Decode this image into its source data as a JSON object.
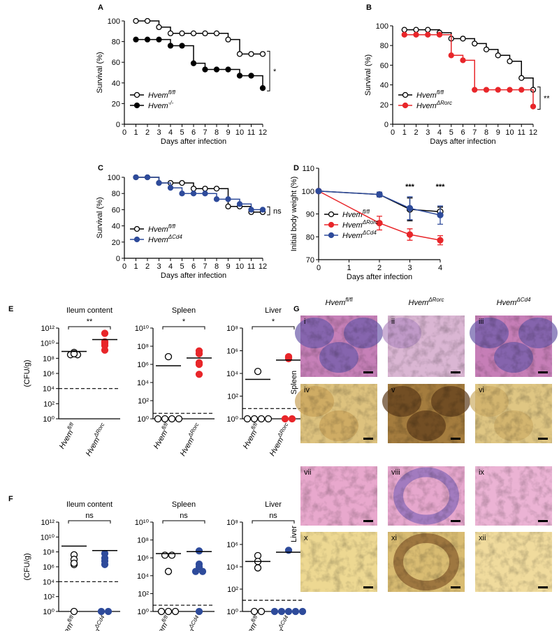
{
  "panel_labels": [
    "A",
    "B",
    "C",
    "D",
    "E",
    "F",
    "G"
  ],
  "chart_data": [
    {
      "type": "step",
      "xlabel": "Days after infection",
      "ylabel": "Survival (%)",
      "xlim": [
        0,
        12
      ],
      "xticks": [
        0,
        1,
        2,
        3,
        4,
        5,
        6,
        7,
        8,
        9,
        10,
        11,
        12
      ],
      "ylim": [
        0,
        100
      ],
      "yticks": [
        0,
        20,
        40,
        60,
        80,
        100
      ],
      "legend": "lower left",
      "annotation": "*",
      "x": [
        1,
        2,
        3,
        4,
        5,
        6,
        7,
        8,
        9,
        10,
        11,
        12
      ],
      "series": [
        {
          "name": "Hvem",
          "sup": "fl/fl",
          "color": "#000000",
          "marker": "open",
          "values": [
            100,
            100,
            94,
            88,
            88,
            88,
            88,
            88,
            82,
            68,
            68,
            68
          ]
        },
        {
          "name": "Hvem",
          "sup": "-/-",
          "color": "#000000",
          "marker": "filled",
          "values": [
            82,
            82,
            82,
            76,
            76,
            59,
            53,
            53,
            53,
            47,
            47,
            35
          ]
        }
      ]
    },
    {
      "type": "step",
      "xlabel": "Days after infection",
      "ylabel": "Survival (%)",
      "xlim": [
        0,
        12
      ],
      "xticks": [
        0,
        1,
        2,
        3,
        4,
        5,
        6,
        7,
        8,
        9,
        10,
        11,
        12
      ],
      "ylim": [
        0,
        100
      ],
      "yticks": [
        0,
        20,
        40,
        60,
        80,
        100
      ],
      "legend": "lower left",
      "annotation": "**",
      "x": [
        1,
        2,
        3,
        4,
        5,
        6,
        7,
        8,
        9,
        10,
        11,
        12
      ],
      "series": [
        {
          "name": "Hvem",
          "sup": "fl/fl",
          "color": "#000000",
          "marker": "open",
          "values": [
            96,
            96,
            96,
            93,
            87,
            87,
            82,
            76,
            70,
            64,
            47,
            35
          ]
        },
        {
          "name": "Hvem",
          "sup": "ΔRorc",
          "color": "#e8262a",
          "marker": "filled",
          "values": [
            91,
            91,
            91,
            91,
            70,
            65,
            35,
            35,
            35,
            35,
            35,
            18
          ]
        }
      ]
    },
    {
      "type": "step",
      "xlabel": "Days after infection",
      "ylabel": "Survival (%)",
      "xlim": [
        0,
        12
      ],
      "xticks": [
        0,
        1,
        2,
        3,
        4,
        5,
        6,
        7,
        8,
        9,
        10,
        11,
        12
      ],
      "ylim": [
        0,
        100
      ],
      "yticks": [
        0,
        20,
        40,
        60,
        80,
        100
      ],
      "legend": "lower left",
      "annotation": "ns",
      "x": [
        1,
        2,
        3,
        4,
        5,
        6,
        7,
        8,
        9,
        10,
        11,
        12
      ],
      "series": [
        {
          "name": "Hvem",
          "sup": "fl/fl",
          "color": "#000000",
          "marker": "open",
          "values": [
            100,
            100,
            93,
            93,
            93,
            86,
            86,
            86,
            64,
            64,
            57,
            57
          ]
        },
        {
          "name": "Hvem",
          "sup": "ΔCd4",
          "color": "#2e4b9b",
          "marker": "filled",
          "values": [
            100,
            100,
            93,
            87,
            80,
            80,
            80,
            73,
            73,
            67,
            60,
            60
          ]
        }
      ]
    },
    {
      "type": "line",
      "xlabel": "Days after infection",
      "ylabel": "Initial body weight (%)",
      "xlim": [
        0,
        4
      ],
      "xticks": [
        0,
        1,
        2,
        3,
        4
      ],
      "ylim": [
        70,
        110
      ],
      "yticks": [
        70,
        80,
        90,
        100,
        110
      ],
      "legend": "lower left",
      "x": [
        0,
        2,
        3,
        4
      ],
      "annotations": [
        {
          "x": 3,
          "text": "***"
        },
        {
          "x": 4,
          "text": "***"
        }
      ],
      "series": [
        {
          "name": "Hvem",
          "sup": "fl/fl",
          "color": "#000000",
          "marker": "open",
          "values": [
            100,
            98.5,
            92,
            91
          ],
          "errors": [
            0,
            1,
            5,
            2
          ]
        },
        {
          "name": "Hvem",
          "sup": "ΔRorc",
          "color": "#e8262a",
          "marker": "filled",
          "values": [
            100,
            86,
            81,
            78.5
          ],
          "errors": [
            0,
            3,
            2.5,
            2
          ]
        },
        {
          "name": "Hvem",
          "sup": "ΔCd4",
          "color": "#2e4b9b",
          "marker": "filled",
          "values": [
            100,
            98.5,
            92.5,
            89.5
          ],
          "errors": [
            0,
            1,
            5,
            4
          ]
        }
      ]
    },
    {
      "type": "strip",
      "title": "Ileum content",
      "ylabel": "(CFU/g)",
      "yscale": "log",
      "ylim": [
        1,
        1000000000000.0
      ],
      "detection_limit": 10000.0,
      "annotation": "**",
      "yticks": [
        {
          "value": 1,
          "label": "10⁰"
        },
        {
          "value": 100,
          "label": "10²"
        },
        {
          "value": 10000.0,
          "label": "10⁴"
        },
        {
          "value": 1000000.0,
          "label": "10⁶"
        },
        {
          "value": 100000000.0,
          "label": "10⁸"
        },
        {
          "value": 10000000000.0,
          "label": "10¹⁰"
        },
        {
          "value": 1000000000000.0,
          "label": "10¹²"
        }
      ],
      "series": [
        {
          "name": "Hvem",
          "sup": "fl/fl",
          "color": "#000000",
          "marker": "open",
          "values": [
            600000000.0,
            300000000.0,
            300000000.0,
            400000000.0
          ],
          "mean": 800000000.0
        },
        {
          "name": "Hvem",
          "sup": "ΔRorc",
          "color": "#e8262a",
          "marker": "filled",
          "values": [
            200000000000.0,
            10000000000.0,
            15000000000.0,
            5000000000.0,
            1200000000.0
          ],
          "mean": 30000000000.0
        }
      ]
    },
    {
      "type": "strip",
      "title": "Spleen",
      "yscale": "log",
      "ylim": [
        1,
        10000000000.0
      ],
      "detection_limit": 4,
      "annotation": "*",
      "yticks": [
        {
          "value": 1,
          "label": "10⁰"
        },
        {
          "value": 100,
          "label": "10²"
        },
        {
          "value": 10000.0,
          "label": "10⁴"
        },
        {
          "value": 1000000.0,
          "label": "10⁶"
        },
        {
          "value": 100000000.0,
          "label": "10⁸"
        },
        {
          "value": 10000000000.0,
          "label": "10¹⁰"
        }
      ],
      "series": [
        {
          "name": "Hvem",
          "sup": "fl/fl",
          "color": "#000000",
          "marker": "open",
          "values": [
            7000000.0,
            1,
            1,
            1,
            1
          ],
          "mean": 700000.0
        },
        {
          "name": "Hvem",
          "sup": "ΔRorc",
          "color": "#e8262a",
          "marker": "filled",
          "values": [
            30000000.0,
            15000000.0,
            1500000.0,
            1000000.0,
            80000.0
          ],
          "mean": 5000000.0
        }
      ]
    },
    {
      "type": "strip",
      "title": "Liver",
      "yscale": "log",
      "ylim": [
        1,
        100000000.0
      ],
      "detection_limit": 8,
      "annotation": "*",
      "yticks": [
        {
          "value": 1,
          "label": "10⁰"
        },
        {
          "value": 100,
          "label": "10²"
        },
        {
          "value": 10000.0,
          "label": "10⁴"
        },
        {
          "value": 1000000.0,
          "label": "10⁶"
        },
        {
          "value": 100000000.0,
          "label": "10⁸"
        }
      ],
      "series": [
        {
          "name": "Hvem",
          "sup": "fl/fl",
          "color": "#000000",
          "marker": "open",
          "values": [
            15000.0,
            1,
            1,
            1,
            1
          ],
          "mean": 3000.0
        },
        {
          "name": "Hvem",
          "sup": "ΔRorc",
          "color": "#e8262a",
          "marker": "filled",
          "values": [
            250000.0,
            300000.0,
            200000.0,
            1,
            1
          ],
          "mean": 150000.0
        }
      ]
    },
    {
      "type": "strip",
      "title": "Ileum content",
      "ylabel": "(CFU/g)",
      "yscale": "log",
      "ylim": [
        1,
        1000000000000.0
      ],
      "detection_limit": 10000.0,
      "annotation": "ns",
      "yticks": [
        {
          "value": 1,
          "label": "10⁰"
        },
        {
          "value": 100,
          "label": "10²"
        },
        {
          "value": 10000.0,
          "label": "10⁴"
        },
        {
          "value": 1000000.0,
          "label": "10⁶"
        },
        {
          "value": 100000000.0,
          "label": "10⁸"
        },
        {
          "value": 10000000000.0,
          "label": "10¹⁰"
        },
        {
          "value": 1000000000000.0,
          "label": "10¹²"
        }
      ],
      "series": [
        {
          "name": "Hvem",
          "sup": "fl/fl",
          "color": "#000000",
          "marker": "open",
          "values": [
            40000000.0,
            10000000.0,
            2000000.0,
            3000000.0,
            1
          ],
          "mean": 600000000.0
        },
        {
          "name": "Hvem",
          "sup": "ΔCd4",
          "color": "#2e4b9b",
          "marker": "filled",
          "values": [
            60000000.0,
            15000000.0,
            6000000.0,
            2000000.0,
            1,
            1
          ],
          "mean": 150000000.0
        }
      ]
    },
    {
      "type": "strip",
      "title": "Spleen",
      "yscale": "log",
      "ylim": [
        1,
        10000000000.0
      ],
      "detection_limit": 5,
      "annotation": "ns",
      "yticks": [
        {
          "value": 1,
          "label": "10⁰"
        },
        {
          "value": 100,
          "label": "10²"
        },
        {
          "value": 10000.0,
          "label": "10⁴"
        },
        {
          "value": 1000000.0,
          "label": "10⁶"
        },
        {
          "value": 100000000.0,
          "label": "10⁸"
        },
        {
          "value": 10000000000.0,
          "label": "10¹⁰"
        }
      ],
      "series": [
        {
          "name": "Hvem",
          "sup": "fl/fl",
          "color": "#000000",
          "marker": "open",
          "values": [
            2000000.0,
            2000000.0,
            30000.0,
            1,
            1,
            1
          ],
          "mean": 3000000.0
        },
        {
          "name": "Hvem",
          "sup": "ΔCd4",
          "color": "#2e4b9b",
          "marker": "filled",
          "values": [
            6000000.0,
            200000.0,
            100000.0,
            30000.0,
            30000.0,
            1
          ],
          "mean": 5000000.0
        }
      ]
    },
    {
      "type": "strip",
      "title": "Liver",
      "yscale": "log",
      "ylim": [
        1,
        100000000.0
      ],
      "detection_limit": 10,
      "annotation": "ns",
      "yticks": [
        {
          "value": 1,
          "label": "10⁰"
        },
        {
          "value": 100,
          "label": "10²"
        },
        {
          "value": 10000.0,
          "label": "10⁴"
        },
        {
          "value": 1000000.0,
          "label": "10⁶"
        },
        {
          "value": 100000000.0,
          "label": "10⁸"
        }
      ],
      "series": [
        {
          "name": "Hvem",
          "sup": "fl/fl",
          "color": "#000000",
          "marker": "open",
          "values": [
            100000.0,
            30000.0,
            8000.0,
            1,
            1
          ],
          "mean": 30000.0
        },
        {
          "name": "Hvem",
          "sup": "ΔCd4",
          "color": "#2e4b9b",
          "marker": "filled",
          "values": [
            300000.0,
            1,
            1,
            1,
            1,
            1
          ],
          "mean": 200000.0
        }
      ]
    }
  ],
  "image_panel": {
    "columns": [
      {
        "name": "Hvem",
        "sup": "fl/fl",
        "color": "#000000"
      },
      {
        "name": "Hvem",
        "sup": "ΔRorc",
        "color": "#e8262a"
      },
      {
        "name": "Hvem",
        "sup": "ΔCd4",
        "color": "#2e4b9b"
      }
    ],
    "rows": [
      "Spleen",
      "Liver"
    ],
    "tiles": [
      "i",
      "ii",
      "iii",
      "iv",
      "v",
      "vi",
      "vii",
      "viii",
      "ix",
      "x",
      "xi",
      "xii"
    ]
  }
}
